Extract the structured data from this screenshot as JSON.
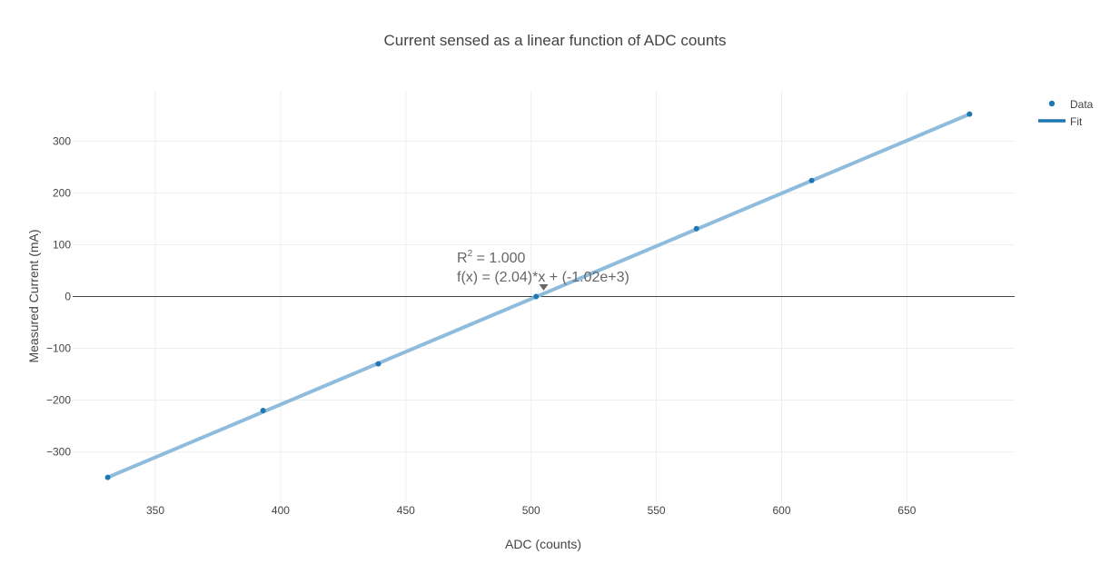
{
  "chart_data": {
    "type": "scatter",
    "title": "Current sensed as a linear function of ADC counts",
    "xlabel": "ADC (counts)",
    "ylabel": "Measured Current (mA)",
    "xlim": [
      317,
      693
    ],
    "ylim": [
      -397,
      397
    ],
    "x_ticks": [
      350,
      400,
      450,
      500,
      550,
      600,
      650
    ],
    "y_ticks": [
      -300,
      -200,
      -100,
      0,
      100,
      200,
      300
    ],
    "grid": true,
    "legend_position": "top-right",
    "colors": {
      "data": "#1f77b4",
      "fit": "#8fbcdc",
      "annotation": "#666666"
    },
    "series": [
      {
        "name": "Data",
        "mode": "markers",
        "x": [
          331,
          393,
          439,
          502,
          566,
          612,
          675
        ],
        "y": [
          -349,
          -220,
          -130,
          0,
          131,
          224,
          352
        ]
      },
      {
        "name": "Fit",
        "mode": "line",
        "x": [
          331,
          675
        ],
        "y": [
          -349,
          352
        ]
      }
    ],
    "annotation": {
      "r2_label": "R",
      "r2_sup": "2",
      "r2_value": " = 1.000",
      "equation": "f(x) = (2.04)*x + (-1.02e+3)",
      "arrow_target": {
        "x": 505,
        "y": 15
      }
    }
  }
}
